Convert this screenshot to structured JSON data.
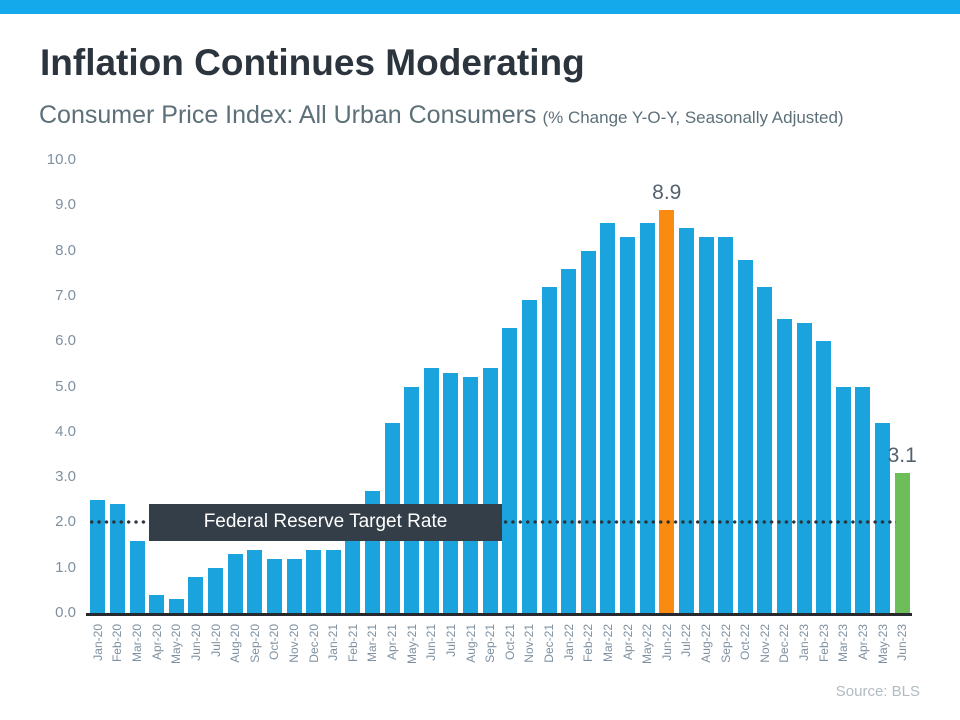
{
  "page": {
    "accent_strip_color": "#13a9ea",
    "background": "#ffffff"
  },
  "header": {
    "title": "Inflation Continues Moderating",
    "subtitle": "Consumer Price Index: All Urban Consumers",
    "subtitle_suffix": "(% Change Y-O-Y, Seasonally Adjusted)"
  },
  "chart_data": {
    "type": "bar",
    "title": "Consumer Price Index: All Urban Consumers",
    "units": "% Change Y-O-Y, Seasonally Adjusted",
    "categories": [
      "Jan-20",
      "Feb-20",
      "Mar-20",
      "Apr-20",
      "May-20",
      "Jun-20",
      "Jul-20",
      "Aug-20",
      "Sep-20",
      "Oct-20",
      "Nov-20",
      "Dec-20",
      "Jan-21",
      "Feb-21",
      "Mar-21",
      "Apr-21",
      "May-21",
      "Jun-21",
      "Jul-21",
      "Aug-21",
      "Sep-21",
      "Oct-21",
      "Nov-21",
      "Dec-21",
      "Jan-22",
      "Feb-22",
      "Mar-22",
      "Apr-22",
      "May-22",
      "Jun-22",
      "Jul-22",
      "Aug-22",
      "Sep-22",
      "Oct-22",
      "Nov-22",
      "Dec-22",
      "Jan-23",
      "Feb-23",
      "Mar-23",
      "Apr-23",
      "May-23",
      "Jun-23"
    ],
    "values": [
      2.5,
      2.4,
      1.6,
      0.4,
      0.3,
      0.8,
      1.0,
      1.3,
      1.4,
      1.2,
      1.2,
      1.4,
      1.4,
      1.7,
      2.7,
      4.2,
      5.0,
      5.4,
      5.3,
      5.2,
      5.4,
      6.3,
      6.9,
      7.2,
      7.6,
      8.0,
      8.6,
      8.3,
      8.6,
      8.9,
      8.5,
      8.3,
      8.3,
      7.8,
      7.2,
      6.5,
      6.4,
      6.0,
      5.0,
      5.0,
      4.2,
      3.1
    ],
    "ylim": [
      0,
      10
    ],
    "ytick_step": 1.0,
    "ytick_labels": [
      "0.0",
      "1.0",
      "2.0",
      "3.0",
      "4.0",
      "5.0",
      "6.0",
      "7.0",
      "8.0",
      "9.0",
      "10.0"
    ],
    "grid": false,
    "legend": "none",
    "bar_color": "#1aa3dd",
    "highlights": [
      {
        "index": 29,
        "category": "Jun-22",
        "value": 8.9,
        "label": "8.9",
        "color": "#f98c10"
      },
      {
        "index": 41,
        "category": "Jun-23",
        "value": 3.1,
        "label": "3.1",
        "color": "#6dbe58"
      }
    ],
    "target_line": {
      "value": 2.0,
      "label": "Federal Reserve Target Rate",
      "style": "dotted",
      "color": "#2b3137",
      "label_bg": "#333e48",
      "label_text_color": "#ffffff"
    }
  },
  "footer": {
    "source": "Source: BLS"
  }
}
